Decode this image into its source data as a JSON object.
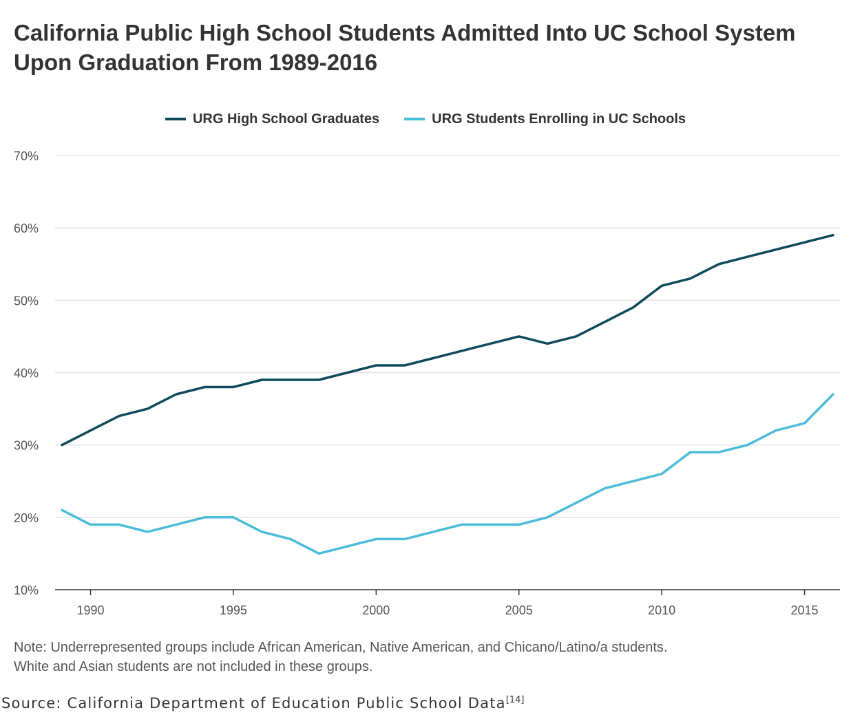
{
  "title": "California Public High School Students Admitted Into UC School System Upon Graduation From 1989-2016",
  "note_line1": "Note: Underrepresented groups include African American, Native American, and Chicano/Latino/a students.",
  "note_line2": "White and Asian students are not included in these groups.",
  "source_text": "Source: California Department of Education Public School Data",
  "source_ref": "[14]",
  "chart_data": {
    "type": "line",
    "title": "California Public High School Students Admitted Into UC School System Upon Graduation From 1989-2016",
    "xlabel": "",
    "ylabel": "",
    "x": [
      1989,
      1990,
      1991,
      1992,
      1993,
      1994,
      1995,
      1996,
      1997,
      1998,
      1999,
      2000,
      2001,
      2002,
      2003,
      2004,
      2005,
      2006,
      2007,
      2008,
      2009,
      2010,
      2011,
      2012,
      2013,
      2014,
      2015,
      2016
    ],
    "series": [
      {
        "name": "URG High School Graduates",
        "color": "#0f4a5a",
        "values": [
          30,
          32,
          34,
          35,
          37,
          38,
          38,
          39,
          39,
          39,
          40,
          41,
          41,
          42,
          43,
          44,
          45,
          44,
          45,
          47,
          49,
          52,
          53,
          55,
          56,
          57,
          58,
          59
        ]
      },
      {
        "name": "URG Students Enrolling in UC Schools",
        "color": "#4bbcd8",
        "values": [
          21,
          19,
          19,
          18,
          19,
          20,
          20,
          18,
          17,
          15,
          16,
          17,
          17,
          18,
          19,
          19,
          19,
          20,
          22,
          24,
          25,
          26,
          29,
          29,
          30,
          32,
          33,
          37
        ]
      }
    ],
    "ylim": [
      10,
      70
    ],
    "xlim": [
      1989,
      2016
    ],
    "yticks": [
      10,
      20,
      30,
      40,
      50,
      60,
      70
    ],
    "ytick_labels": [
      "10%",
      "20%",
      "30%",
      "40%",
      "50%",
      "60%",
      "70%"
    ],
    "xticks": [
      1990,
      1995,
      2000,
      2005,
      2010,
      2015
    ],
    "xtick_labels": [
      "1990",
      "1995",
      "2000",
      "2005",
      "2010",
      "2015"
    ],
    "grid": true,
    "legend_position": "top-center"
  }
}
